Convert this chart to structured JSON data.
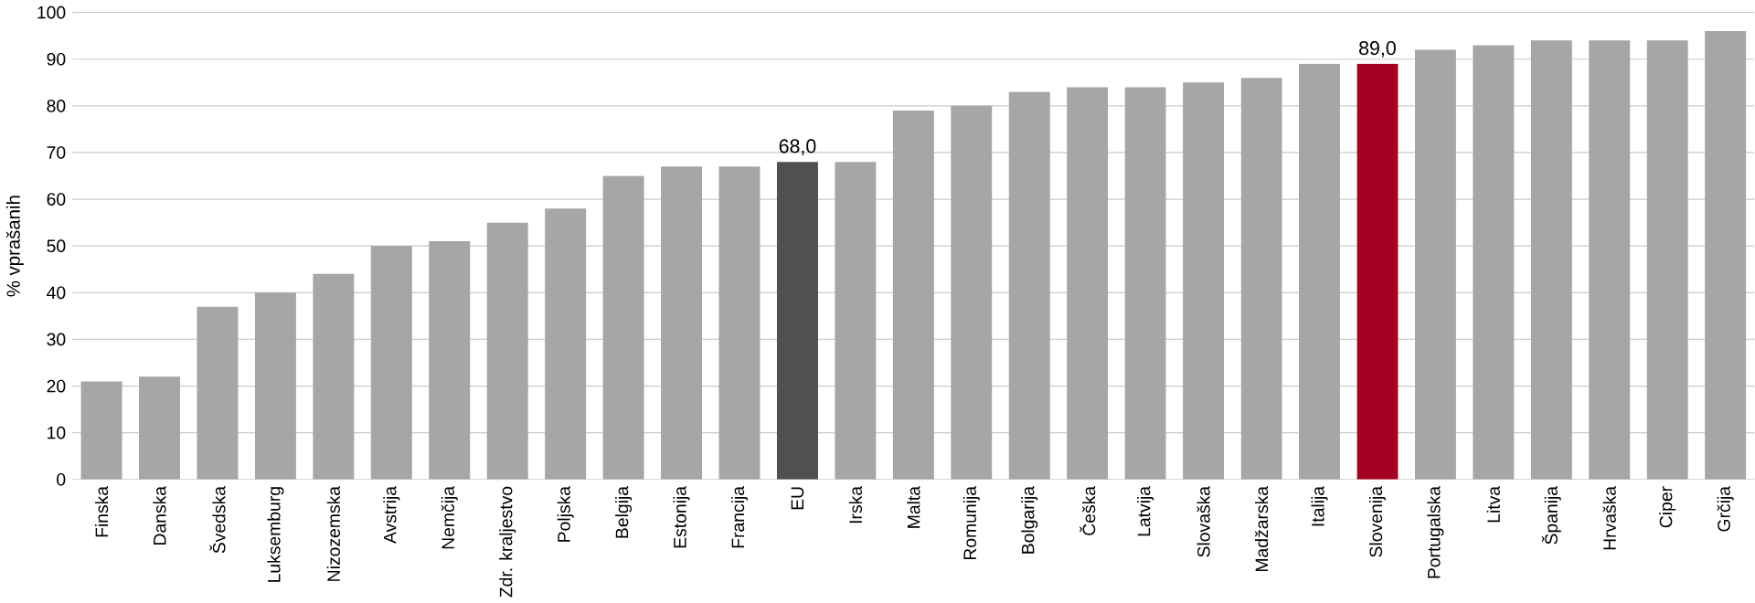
{
  "chart_data": {
    "type": "bar",
    "ylabel": "% vprašanih",
    "categories": [
      "Finska",
      "Danska",
      "Švedska",
      "Luksemburg",
      "Nizozemska",
      "Avstrija",
      "Nemčija",
      "Zdr. kraljestvo",
      "Poljska",
      "Belgija",
      "Estonija",
      "Francija",
      "EU",
      "Irska",
      "Malta",
      "Romunija",
      "Bolgarija",
      "Češka",
      "Latvija",
      "Slovaška",
      "Madžarska",
      "Italija",
      "Slovenija",
      "Portugalska",
      "Litva",
      "Španija",
      "Hrvaška",
      "Ciper",
      "Grčija"
    ],
    "values": [
      21,
      22,
      37,
      40,
      44,
      50,
      51,
      55,
      58,
      65,
      67,
      67,
      68,
      68,
      79,
      80,
      83,
      84,
      84,
      85,
      86,
      89,
      89,
      92,
      93,
      94,
      94,
      94,
      96
    ],
    "colors": [
      "#a6a6a6",
      "#a6a6a6",
      "#a6a6a6",
      "#a6a6a6",
      "#a6a6a6",
      "#a6a6a6",
      "#a6a6a6",
      "#a6a6a6",
      "#a6a6a6",
      "#a6a6a6",
      "#a6a6a6",
      "#a6a6a6",
      "#505050",
      "#a6a6a6",
      "#a6a6a6",
      "#a6a6a6",
      "#a6a6a6",
      "#a6a6a6",
      "#a6a6a6",
      "#a6a6a6",
      "#a6a6a6",
      "#a6a6a6",
      "#a50021",
      "#a6a6a6",
      "#a6a6a6",
      "#a6a6a6",
      "#a6a6a6",
      "#a6a6a6",
      "#a6a6a6"
    ],
    "value_labels": [
      null,
      null,
      null,
      null,
      null,
      null,
      null,
      null,
      null,
      null,
      null,
      null,
      "68,0",
      null,
      null,
      null,
      null,
      null,
      null,
      null,
      null,
      null,
      "89,0",
      null,
      null,
      null,
      null,
      null,
      null
    ],
    "ylim": [
      0,
      100
    ],
    "yticks": [
      0,
      10,
      20,
      30,
      40,
      50,
      60,
      70,
      80,
      90,
      100
    ],
    "grid": "y"
  }
}
